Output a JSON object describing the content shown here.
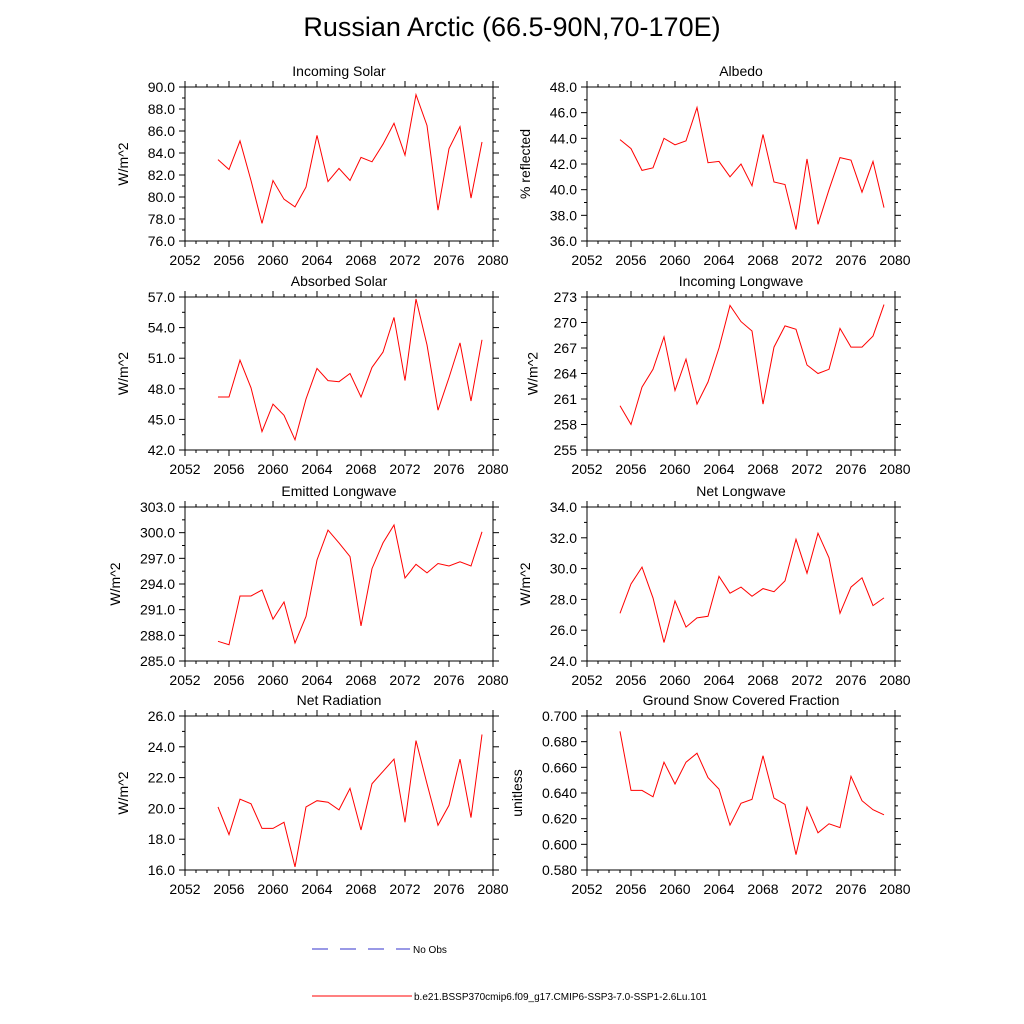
{
  "figure": {
    "title": "Russian Arctic (66.5-90N,70-170E)"
  },
  "legend": {
    "obs_label": "No Obs",
    "model_label": "b.e21.BSSP370cmip6.f09_g17.CMIP6-SSP3-7.0-SSP1-2.6Lu.101",
    "obs_color": "#3333cc",
    "model_color": "#ff0000"
  },
  "chart_data": [
    {
      "type": "line",
      "title": "Incoming Solar",
      "ylabel": "W/m^2",
      "xlabel": "",
      "xlim": [
        2052,
        2080
      ],
      "ylim": [
        76,
        90
      ],
      "xticks": [
        "2052",
        "2056",
        "2060",
        "2064",
        "2068",
        "2072",
        "2076",
        "2080"
      ],
      "yticks": [
        "76.0",
        "78.0",
        "80.0",
        "82.0",
        "84.0",
        "86.0",
        "88.0",
        "90.0"
      ],
      "x": [
        2055,
        2056,
        2057,
        2058,
        2059,
        2060,
        2061,
        2062,
        2063,
        2064,
        2065,
        2066,
        2067,
        2068,
        2069,
        2070,
        2071,
        2072,
        2073,
        2074,
        2075,
        2076,
        2077,
        2078,
        2079
      ],
      "values": [
        83.4,
        82.5,
        85.1,
        81.5,
        77.6,
        81.5,
        79.8,
        79.1,
        80.9,
        85.6,
        81.4,
        82.6,
        81.5,
        83.6,
        83.2,
        84.8,
        86.7,
        83.8,
        89.3,
        86.5,
        78.8,
        84.4,
        86.4,
        79.9,
        85.0
      ],
      "color": "#ff0000"
    },
    {
      "type": "line",
      "title": "Albedo",
      "ylabel": "% reflected",
      "xlabel": "",
      "xlim": [
        2052,
        2080
      ],
      "ylim": [
        36,
        48
      ],
      "xticks": [
        "2052",
        "2056",
        "2060",
        "2064",
        "2068",
        "2072",
        "2076",
        "2080"
      ],
      "yticks": [
        "36.0",
        "38.0",
        "40.0",
        "42.0",
        "44.0",
        "46.0",
        "48.0"
      ],
      "x": [
        2055,
        2056,
        2057,
        2058,
        2059,
        2060,
        2061,
        2062,
        2063,
        2064,
        2065,
        2066,
        2067,
        2068,
        2069,
        2070,
        2071,
        2072,
        2073,
        2074,
        2075,
        2076,
        2077,
        2078,
        2079
      ],
      "values": [
        43.9,
        43.2,
        41.5,
        41.7,
        44.0,
        43.5,
        43.8,
        46.4,
        42.1,
        42.2,
        41.0,
        42.0,
        40.3,
        44.3,
        40.6,
        40.4,
        36.9,
        42.4,
        37.3,
        40.0,
        42.5,
        42.3,
        39.8,
        42.2,
        38.6
      ],
      "color": "#ff0000"
    },
    {
      "type": "line",
      "title": "Absorbed Solar",
      "ylabel": "W/m^2",
      "xlabel": "",
      "xlim": [
        2052,
        2080
      ],
      "ylim": [
        42,
        57
      ],
      "xticks": [
        "2052",
        "2056",
        "2060",
        "2064",
        "2068",
        "2072",
        "2076",
        "2080"
      ],
      "yticks": [
        "42.0",
        "45.0",
        "48.0",
        "51.0",
        "54.0",
        "57.0"
      ],
      "x": [
        2055,
        2056,
        2057,
        2058,
        2059,
        2060,
        2061,
        2062,
        2063,
        2064,
        2065,
        2066,
        2067,
        2068,
        2069,
        2070,
        2071,
        2072,
        2073,
        2074,
        2075,
        2076,
        2077,
        2078,
        2079
      ],
      "values": [
        47.2,
        47.2,
        50.8,
        48.1,
        43.8,
        46.5,
        45.4,
        43.0,
        47.0,
        50.0,
        48.8,
        48.7,
        49.5,
        47.2,
        50.1,
        51.6,
        55.0,
        48.8,
        56.8,
        52.3,
        45.9,
        49.1,
        52.5,
        46.8,
        52.8
      ],
      "color": "#ff0000"
    },
    {
      "type": "line",
      "title": "Incoming Longwave",
      "ylabel": "W/m^2",
      "xlabel": "",
      "xlim": [
        2052,
        2080
      ],
      "ylim": [
        255,
        273
      ],
      "xticks": [
        "2052",
        "2056",
        "2060",
        "2064",
        "2068",
        "2072",
        "2076",
        "2080"
      ],
      "yticks": [
        "255",
        "258",
        "261",
        "264",
        "267",
        "270",
        "273"
      ],
      "x": [
        2055,
        2056,
        2057,
        2058,
        2059,
        2060,
        2061,
        2062,
        2063,
        2064,
        2065,
        2066,
        2067,
        2068,
        2069,
        2070,
        2071,
        2072,
        2073,
        2074,
        2075,
        2076,
        2077,
        2078,
        2079
      ],
      "values": [
        260.2,
        258.0,
        262.4,
        264.5,
        268.3,
        262.0,
        265.7,
        260.4,
        263.0,
        267.0,
        272.0,
        270.1,
        269.0,
        260.4,
        267.1,
        269.6,
        269.2,
        265.0,
        264.0,
        264.5,
        269.3,
        267.1,
        267.1,
        268.4,
        272.1
      ],
      "color": "#ff0000"
    },
    {
      "type": "line",
      "title": "Emitted Longwave",
      "ylabel": "W/m^2",
      "xlabel": "",
      "xlim": [
        2052,
        2080
      ],
      "ylim": [
        285,
        303
      ],
      "xticks": [
        "2052",
        "2056",
        "2060",
        "2064",
        "2068",
        "2072",
        "2076",
        "2080"
      ],
      "yticks": [
        "285.0",
        "288.0",
        "291.0",
        "294.0",
        "297.0",
        "300.0",
        "303.0"
      ],
      "x": [
        2055,
        2056,
        2057,
        2058,
        2059,
        2060,
        2061,
        2062,
        2063,
        2064,
        2065,
        2066,
        2067,
        2068,
        2069,
        2070,
        2071,
        2072,
        2073,
        2074,
        2075,
        2076,
        2077,
        2078,
        2079
      ],
      "values": [
        287.3,
        286.9,
        292.6,
        292.6,
        293.3,
        289.9,
        291.9,
        287.1,
        290.2,
        296.8,
        300.3,
        298.8,
        297.2,
        289.1,
        295.8,
        298.8,
        300.9,
        294.7,
        296.3,
        295.3,
        296.4,
        296.1,
        296.6,
        296.1,
        300.1
      ],
      "color": "#ff0000"
    },
    {
      "type": "line",
      "title": "Net Longwave",
      "ylabel": "W/m^2",
      "xlabel": "",
      "xlim": [
        2052,
        2080
      ],
      "ylim": [
        24,
        34
      ],
      "xticks": [
        "2052",
        "2056",
        "2060",
        "2064",
        "2068",
        "2072",
        "2076",
        "2080"
      ],
      "yticks": [
        "24.0",
        "26.0",
        "28.0",
        "30.0",
        "32.0",
        "34.0"
      ],
      "x": [
        2055,
        2056,
        2057,
        2058,
        2059,
        2060,
        2061,
        2062,
        2063,
        2064,
        2065,
        2066,
        2067,
        2068,
        2069,
        2070,
        2071,
        2072,
        2073,
        2074,
        2075,
        2076,
        2077,
        2078,
        2079
      ],
      "values": [
        27.1,
        29.0,
        30.1,
        28.1,
        25.2,
        27.9,
        26.2,
        26.8,
        26.9,
        29.5,
        28.4,
        28.8,
        28.2,
        28.7,
        28.5,
        29.2,
        31.9,
        29.7,
        32.3,
        30.7,
        27.1,
        28.8,
        29.4,
        27.6,
        28.1
      ],
      "color": "#ff0000"
    },
    {
      "type": "line",
      "title": "Net Radiation",
      "ylabel": "W/m^2",
      "xlabel": "",
      "xlim": [
        2052,
        2080
      ],
      "ylim": [
        16,
        26
      ],
      "xticks": [
        "2052",
        "2056",
        "2060",
        "2064",
        "2068",
        "2072",
        "2076",
        "2080"
      ],
      "yticks": [
        "16.0",
        "18.0",
        "20.0",
        "22.0",
        "24.0",
        "26.0"
      ],
      "x": [
        2055,
        2056,
        2057,
        2058,
        2059,
        2060,
        2061,
        2062,
        2063,
        2064,
        2065,
        2066,
        2067,
        2068,
        2069,
        2070,
        2071,
        2072,
        2073,
        2074,
        2075,
        2076,
        2077,
        2078,
        2079
      ],
      "values": [
        20.1,
        18.3,
        20.6,
        20.3,
        18.7,
        18.7,
        19.1,
        16.2,
        20.1,
        20.5,
        20.4,
        19.9,
        21.3,
        18.6,
        21.6,
        22.4,
        23.2,
        19.1,
        24.4,
        21.6,
        18.9,
        20.2,
        23.2,
        19.4,
        24.8
      ],
      "color": "#ff0000"
    },
    {
      "type": "line",
      "title": "Ground Snow Covered Fraction",
      "ylabel": "unitless",
      "xlabel": "",
      "xlim": [
        2052,
        2080
      ],
      "ylim": [
        0.58,
        0.7
      ],
      "xticks": [
        "2052",
        "2056",
        "2060",
        "2064",
        "2068",
        "2072",
        "2076",
        "2080"
      ],
      "yticks": [
        "0.580",
        "0.600",
        "0.620",
        "0.640",
        "0.660",
        "0.680",
        "0.700"
      ],
      "x": [
        2055,
        2056,
        2057,
        2058,
        2059,
        2060,
        2061,
        2062,
        2063,
        2064,
        2065,
        2066,
        2067,
        2068,
        2069,
        2070,
        2071,
        2072,
        2073,
        2074,
        2075,
        2076,
        2077,
        2078,
        2079
      ],
      "values": [
        0.688,
        0.642,
        0.642,
        0.637,
        0.664,
        0.647,
        0.664,
        0.671,
        0.652,
        0.643,
        0.615,
        0.632,
        0.635,
        0.669,
        0.636,
        0.631,
        0.592,
        0.629,
        0.609,
        0.616,
        0.613,
        0.653,
        0.634,
        0.627,
        0.623
      ],
      "color": "#ff0000"
    }
  ]
}
